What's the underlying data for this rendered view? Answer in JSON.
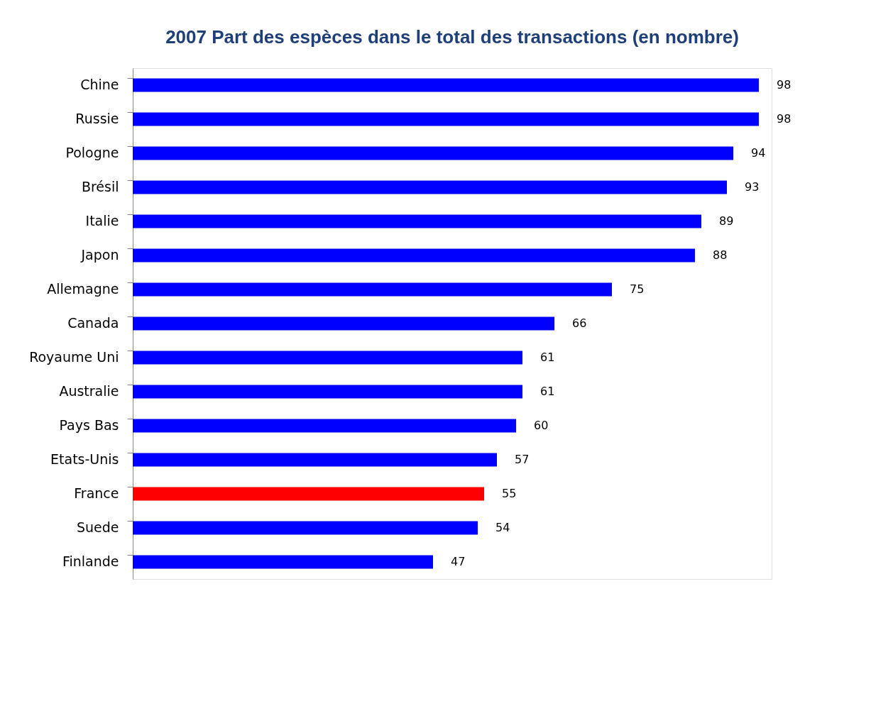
{
  "chart_data": {
    "type": "bar",
    "orientation": "horizontal",
    "title": "2007 Part des espèces dans le total des transactions (en nombre)",
    "categories": [
      "Chine",
      "Russie",
      "Pologne",
      "Brésil",
      "Italie",
      "Japon",
      "Allemagne",
      "Canada",
      "Royaume Uni",
      "Australie",
      "Pays Bas",
      "Etats-Unis",
      "France",
      "Suede",
      "Finlande"
    ],
    "values": [
      98,
      98,
      94,
      93,
      89,
      88,
      75,
      66,
      61,
      61,
      60,
      57,
      55,
      54,
      47
    ],
    "colors": [
      "#0000ff",
      "#0000ff",
      "#0000ff",
      "#0000ff",
      "#0000ff",
      "#0000ff",
      "#0000ff",
      "#0000ff",
      "#0000ff",
      "#0000ff",
      "#0000ff",
      "#0000ff",
      "#ff0000",
      "#0000ff",
      "#0000ff"
    ],
    "data_labels": true
  }
}
